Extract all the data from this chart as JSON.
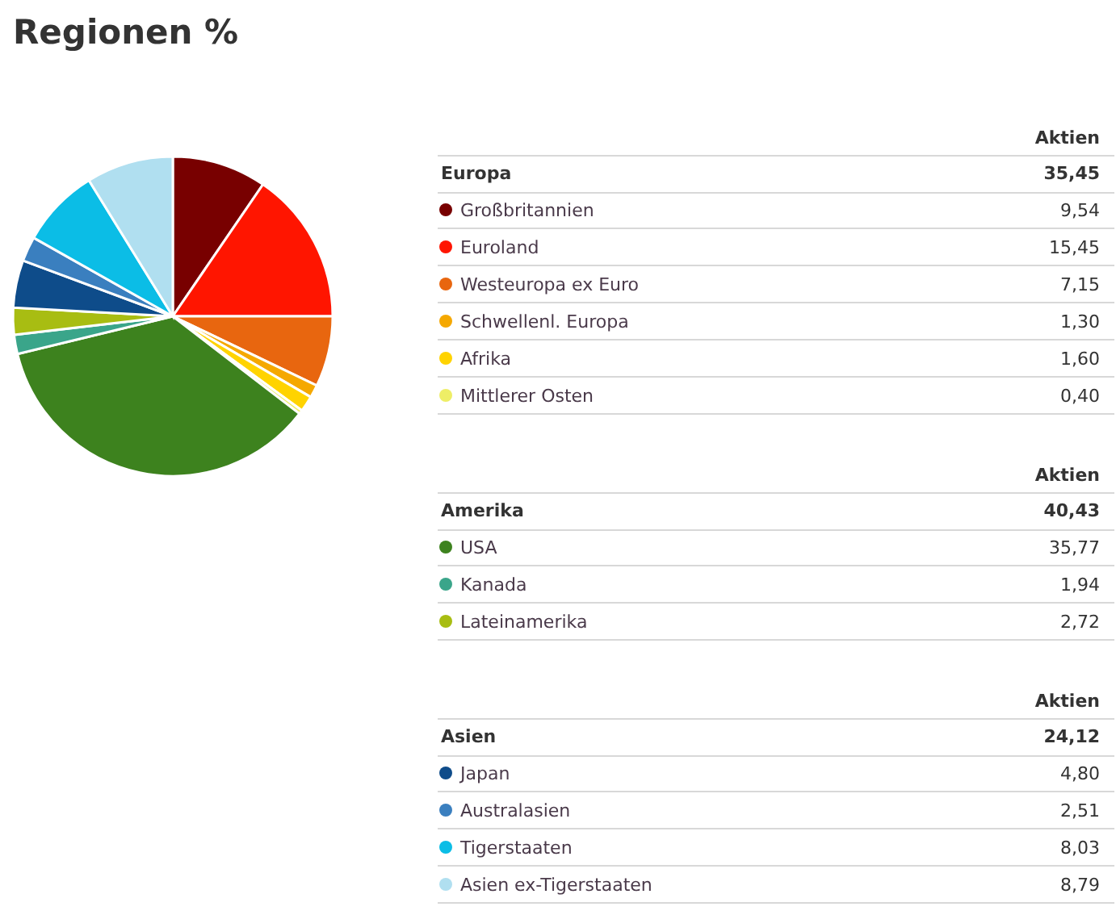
{
  "chart_data": {
    "type": "pie",
    "title": "Regionen %",
    "categories": [
      "Großbritannien",
      "Euroland",
      "Westeuropa ex Euro",
      "Schwellenl. Europa",
      "Afrika",
      "Mittlerer Osten",
      "USA",
      "Kanada",
      "Lateinamerika",
      "Japan",
      "Australasien",
      "Tigerstaaten",
      "Asien ex-Tigerstaaten"
    ],
    "values": [
      9.54,
      15.45,
      7.15,
      1.3,
      1.6,
      0.4,
      35.77,
      1.94,
      2.72,
      4.8,
      2.51,
      8.03,
      8.79
    ],
    "value_labels": [
      "9,54",
      "15,45",
      "7,15",
      "1,30",
      "1,60",
      "0,40",
      "35,77",
      "1,94",
      "2,72",
      "4,80",
      "2,51",
      "8,03",
      "8,79"
    ],
    "colors": [
      "#780000",
      "#ff1500",
      "#e8660f",
      "#f5a800",
      "#ffd300",
      "#eeee66",
      "#3d821e",
      "#3aa58a",
      "#a8bd12",
      "#0e4c8a",
      "#3a7fbf",
      "#0bbde6",
      "#b0dff0"
    ],
    "annotations": [
      "Aktien",
      "Europa",
      "35,45",
      "Aktien",
      "Amerika",
      "40,43",
      "Aktien",
      "Asien",
      "24,12"
    ],
    "legend": "right"
  }
}
